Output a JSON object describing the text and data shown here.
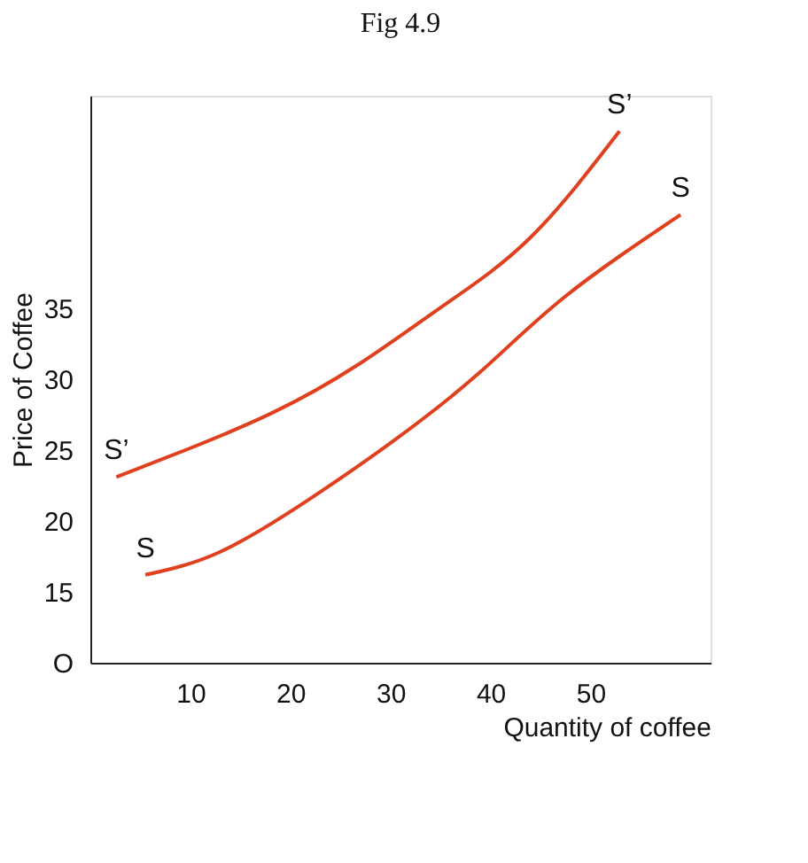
{
  "chart_data": {
    "type": "line",
    "title": "Fig 4.9",
    "xlabel": "Quantity of coffee",
    "ylabel": "Price of Coffee",
    "xlim": [
      0,
      62
    ],
    "xticks": [
      10,
      20,
      30,
      40,
      50
    ],
    "ylim": [
      10,
      50
    ],
    "yticks": [
      {
        "value": 10,
        "label": "O"
      },
      15,
      20,
      25,
      30,
      35
    ],
    "grid": false,
    "marker": "none",
    "line_style": "solid",
    "series": [
      {
        "name": "S’",
        "color": "#e0401e",
        "x": [
          2.6,
          9.5,
          18.1,
          26.7,
          35.3,
          44,
          52.9
        ],
        "values": [
          23.1,
          25,
          27.6,
          31,
          35.2,
          40,
          47.5
        ]
      },
      {
        "name": "S",
        "color": "#e0401e",
        "x": [
          5.5,
          12.9,
          21.6,
          30.2,
          38.8,
          47.4,
          59
        ],
        "values": [
          16.2,
          17.8,
          21.4,
          25.6,
          30.4,
          35.8,
          41.6
        ]
      }
    ]
  }
}
